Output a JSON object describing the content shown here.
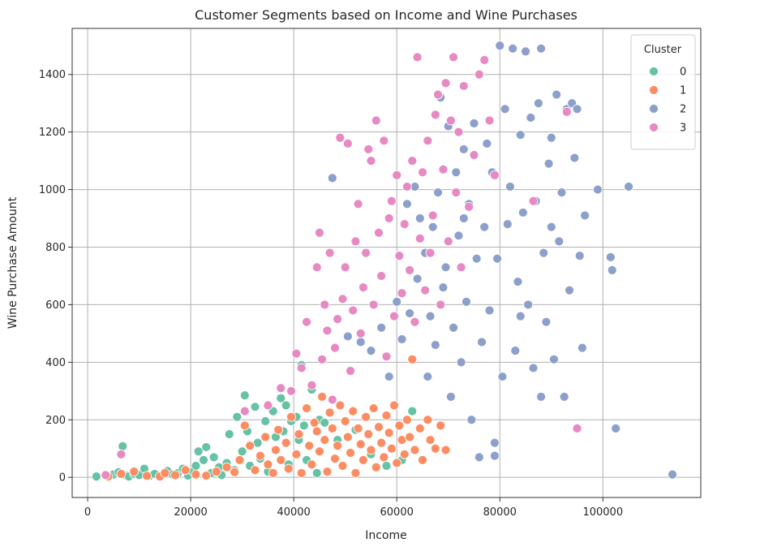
{
  "chart_data": {
    "type": "scatter",
    "title": "Customer Segments based on Income and Wine Purchases",
    "xlabel": "Income",
    "ylabel": "Wine Purchase Amount",
    "xlim": [
      -3000,
      119000
    ],
    "ylim": [
      -70,
      1560
    ],
    "x_ticks": [
      0,
      20000,
      40000,
      60000,
      80000,
      100000
    ],
    "y_ticks": [
      0,
      200,
      400,
      600,
      800,
      1000,
      1200,
      1400
    ],
    "grid": true,
    "legend": {
      "title": "Cluster",
      "position": "top-right",
      "entries": [
        "0",
        "1",
        "2",
        "3"
      ]
    },
    "colors": {
      "0": "#66c2a5",
      "1": "#fc8d62",
      "2": "#8da0cb",
      "3": "#e78ac3"
    },
    "series": [
      {
        "name": "0",
        "points": [
          [
            1700,
            3
          ],
          [
            3500,
            5
          ],
          [
            5000,
            10
          ],
          [
            6000,
            18
          ],
          [
            6800,
            108
          ],
          [
            7500,
            6
          ],
          [
            8000,
            3
          ],
          [
            9000,
            12
          ],
          [
            10000,
            8
          ],
          [
            11000,
            30
          ],
          [
            12000,
            5
          ],
          [
            13000,
            12
          ],
          [
            14500,
            8
          ],
          [
            15500,
            22
          ],
          [
            16500,
            10
          ],
          [
            17500,
            15
          ],
          [
            18500,
            30
          ],
          [
            19500,
            6
          ],
          [
            20500,
            20
          ],
          [
            21000,
            40
          ],
          [
            21500,
            90
          ],
          [
            22500,
            60
          ],
          [
            23000,
            105
          ],
          [
            24000,
            15
          ],
          [
            24500,
            70
          ],
          [
            25500,
            35
          ],
          [
            26000,
            8
          ],
          [
            27000,
            50
          ],
          [
            27500,
            150
          ],
          [
            28500,
            25
          ],
          [
            29000,
            210
          ],
          [
            30000,
            90
          ],
          [
            30500,
            285
          ],
          [
            31000,
            160
          ],
          [
            31500,
            40
          ],
          [
            32500,
            245
          ],
          [
            33000,
            120
          ],
          [
            33500,
            65
          ],
          [
            34500,
            195
          ],
          [
            35000,
            20
          ],
          [
            36000,
            230
          ],
          [
            36500,
            140
          ],
          [
            37500,
            275
          ],
          [
            38000,
            160
          ],
          [
            38500,
            250
          ],
          [
            39000,
            45
          ],
          [
            39500,
            195
          ],
          [
            40500,
            210
          ],
          [
            41000,
            130
          ],
          [
            41500,
            390
          ],
          [
            42000,
            180
          ],
          [
            42500,
            60
          ],
          [
            43500,
            305
          ],
          [
            44500,
            15
          ],
          [
            45000,
            200
          ],
          [
            46000,
            190
          ],
          [
            48500,
            130
          ],
          [
            52000,
            165
          ],
          [
            55000,
            80
          ],
          [
            58000,
            40
          ],
          [
            61000,
            60
          ],
          [
            63000,
            230
          ]
        ]
      },
      {
        "name": "1",
        "points": [
          [
            4000,
            3
          ],
          [
            6500,
            12
          ],
          [
            9000,
            20
          ],
          [
            11500,
            5
          ],
          [
            14000,
            3
          ],
          [
            15000,
            15
          ],
          [
            17000,
            8
          ],
          [
            19000,
            25
          ],
          [
            21000,
            10
          ],
          [
            23000,
            6
          ],
          [
            25000,
            20
          ],
          [
            27000,
            35
          ],
          [
            28500,
            18
          ],
          [
            29500,
            60
          ],
          [
            30500,
            180
          ],
          [
            31500,
            110
          ],
          [
            32500,
            25
          ],
          [
            33500,
            75
          ],
          [
            34500,
            140
          ],
          [
            35000,
            45
          ],
          [
            36000,
            15
          ],
          [
            36500,
            95
          ],
          [
            37000,
            165
          ],
          [
            37500,
            60
          ],
          [
            38500,
            120
          ],
          [
            39000,
            30
          ],
          [
            39500,
            210
          ],
          [
            40500,
            80
          ],
          [
            41000,
            150
          ],
          [
            41500,
            15
          ],
          [
            42500,
            240
          ],
          [
            43000,
            110
          ],
          [
            43500,
            45
          ],
          [
            44000,
            190
          ],
          [
            44500,
            160
          ],
          [
            45000,
            90
          ],
          [
            45500,
            280
          ],
          [
            46000,
            130
          ],
          [
            46500,
            20
          ],
          [
            47000,
            225
          ],
          [
            47500,
            170
          ],
          [
            48000,
            65
          ],
          [
            48500,
            110
          ],
          [
            49000,
            250
          ],
          [
            49500,
            40
          ],
          [
            50000,
            195
          ],
          [
            50500,
            140
          ],
          [
            51000,
            85
          ],
          [
            51500,
            230
          ],
          [
            52000,
            15
          ],
          [
            52500,
            170
          ],
          [
            53000,
            115
          ],
          [
            53500,
            60
          ],
          [
            54000,
            210
          ],
          [
            54500,
            150
          ],
          [
            55000,
            95
          ],
          [
            55500,
            240
          ],
          [
            56000,
            35
          ],
          [
            56500,
            175
          ],
          [
            57000,
            120
          ],
          [
            57500,
            70
          ],
          [
            58000,
            215
          ],
          [
            58500,
            155
          ],
          [
            59000,
            100
          ],
          [
            59500,
            250
          ],
          [
            60000,
            50
          ],
          [
            60500,
            180
          ],
          [
            61000,
            130
          ],
          [
            61500,
            80
          ],
          [
            62000,
            200
          ],
          [
            62500,
            140
          ],
          [
            63000,
            410
          ],
          [
            63500,
            95
          ],
          [
            64500,
            170
          ],
          [
            65000,
            60
          ],
          [
            66000,
            200
          ],
          [
            66500,
            130
          ],
          [
            67500,
            100
          ],
          [
            68500,
            180
          ],
          [
            69500,
            95
          ]
        ]
      },
      {
        "name": "2",
        "points": [
          [
            47500,
            1040
          ],
          [
            50500,
            490
          ],
          [
            53000,
            470
          ],
          [
            55000,
            440
          ],
          [
            57000,
            520
          ],
          [
            58500,
            350
          ],
          [
            60000,
            610
          ],
          [
            61000,
            480
          ],
          [
            62000,
            950
          ],
          [
            62500,
            570
          ],
          [
            63500,
            1010
          ],
          [
            64000,
            690
          ],
          [
            64500,
            900
          ],
          [
            65500,
            780
          ],
          [
            66000,
            350
          ],
          [
            66500,
            560
          ],
          [
            67000,
            870
          ],
          [
            67500,
            460
          ],
          [
            68000,
            990
          ],
          [
            68500,
            1320
          ],
          [
            69000,
            660
          ],
          [
            69500,
            730
          ],
          [
            70000,
            1220
          ],
          [
            70500,
            280
          ],
          [
            71000,
            520
          ],
          [
            71500,
            1060
          ],
          [
            72000,
            840
          ],
          [
            72500,
            400
          ],
          [
            73000,
            1140
          ],
          [
            73500,
            610
          ],
          [
            74000,
            950
          ],
          [
            74500,
            200
          ],
          [
            75000,
            1230
          ],
          [
            75500,
            760
          ],
          [
            76000,
            1400
          ],
          [
            76500,
            470
          ],
          [
            77000,
            870
          ],
          [
            77500,
            1160
          ],
          [
            78000,
            580
          ],
          [
            78500,
            1060
          ],
          [
            79000,
            120
          ],
          [
            79500,
            760
          ],
          [
            80000,
            1500
          ],
          [
            80500,
            350
          ],
          [
            81000,
            1280
          ],
          [
            81500,
            880
          ],
          [
            82000,
            1010
          ],
          [
            82500,
            1490
          ],
          [
            83000,
            440
          ],
          [
            83500,
            680
          ],
          [
            84000,
            1190
          ],
          [
            84500,
            920
          ],
          [
            85000,
            1480
          ],
          [
            85500,
            600
          ],
          [
            86000,
            1250
          ],
          [
            86500,
            380
          ],
          [
            87000,
            960
          ],
          [
            87500,
            1300
          ],
          [
            88000,
            1490
          ],
          [
            88500,
            780
          ],
          [
            89000,
            540
          ],
          [
            89500,
            1090
          ],
          [
            90000,
            1180
          ],
          [
            90500,
            410
          ],
          [
            91000,
            1330
          ],
          [
            91500,
            820
          ],
          [
            92000,
            990
          ],
          [
            92500,
            280
          ],
          [
            93000,
            1280
          ],
          [
            93500,
            650
          ],
          [
            94000,
            1300
          ],
          [
            94500,
            1110
          ],
          [
            95000,
            1280
          ],
          [
            95500,
            770
          ],
          [
            96000,
            450
          ],
          [
            96500,
            910
          ],
          [
            99000,
            1000
          ],
          [
            101500,
            765
          ],
          [
            101800,
            720
          ],
          [
            102500,
            170
          ],
          [
            105000,
            1010
          ],
          [
            113500,
            10
          ],
          [
            76000,
            70
          ],
          [
            79000,
            75
          ],
          [
            73000,
            900
          ],
          [
            84000,
            560
          ],
          [
            88000,
            280
          ],
          [
            90000,
            870
          ]
        ]
      },
      {
        "name": "3",
        "points": [
          [
            3500,
            8
          ],
          [
            6500,
            80
          ],
          [
            30500,
            230
          ],
          [
            35000,
            250
          ],
          [
            37500,
            310
          ],
          [
            39500,
            300
          ],
          [
            40500,
            430
          ],
          [
            41500,
            380
          ],
          [
            42500,
            540
          ],
          [
            43500,
            320
          ],
          [
            44500,
            730
          ],
          [
            45000,
            850
          ],
          [
            45500,
            410
          ],
          [
            46000,
            600
          ],
          [
            46500,
            510
          ],
          [
            47000,
            780
          ],
          [
            47500,
            270
          ],
          [
            48000,
            450
          ],
          [
            48500,
            550
          ],
          [
            49000,
            1180
          ],
          [
            49500,
            620
          ],
          [
            50000,
            730
          ],
          [
            50500,
            1160
          ],
          [
            51000,
            370
          ],
          [
            51500,
            580
          ],
          [
            52000,
            820
          ],
          [
            52500,
            950
          ],
          [
            53000,
            500
          ],
          [
            53500,
            660
          ],
          [
            54000,
            780
          ],
          [
            54500,
            1140
          ],
          [
            55000,
            1100
          ],
          [
            55500,
            600
          ],
          [
            56000,
            1240
          ],
          [
            56500,
            850
          ],
          [
            57000,
            700
          ],
          [
            57500,
            1170
          ],
          [
            58000,
            420
          ],
          [
            58500,
            900
          ],
          [
            59000,
            960
          ],
          [
            59500,
            560
          ],
          [
            60000,
            1050
          ],
          [
            60500,
            770
          ],
          [
            61000,
            640
          ],
          [
            61500,
            880
          ],
          [
            62000,
            1010
          ],
          [
            62500,
            720
          ],
          [
            63000,
            1100
          ],
          [
            63500,
            540
          ],
          [
            64000,
            1460
          ],
          [
            64500,
            830
          ],
          [
            65000,
            1060
          ],
          [
            65500,
            650
          ],
          [
            66000,
            1170
          ],
          [
            66500,
            780
          ],
          [
            67000,
            910
          ],
          [
            67500,
            1260
          ],
          [
            68000,
            1330
          ],
          [
            68500,
            600
          ],
          [
            69000,
            1070
          ],
          [
            69500,
            1370
          ],
          [
            70000,
            820
          ],
          [
            70500,
            1240
          ],
          [
            71000,
            1460
          ],
          [
            71500,
            990
          ],
          [
            72000,
            1200
          ],
          [
            72500,
            730
          ],
          [
            73000,
            1360
          ],
          [
            74000,
            940
          ],
          [
            75000,
            1120
          ],
          [
            76000,
            1400
          ],
          [
            77000,
            1450
          ],
          [
            78000,
            1240
          ],
          [
            79000,
            1050
          ],
          [
            86500,
            960
          ],
          [
            93000,
            1270
          ],
          [
            95000,
            170
          ]
        ]
      }
    ]
  }
}
